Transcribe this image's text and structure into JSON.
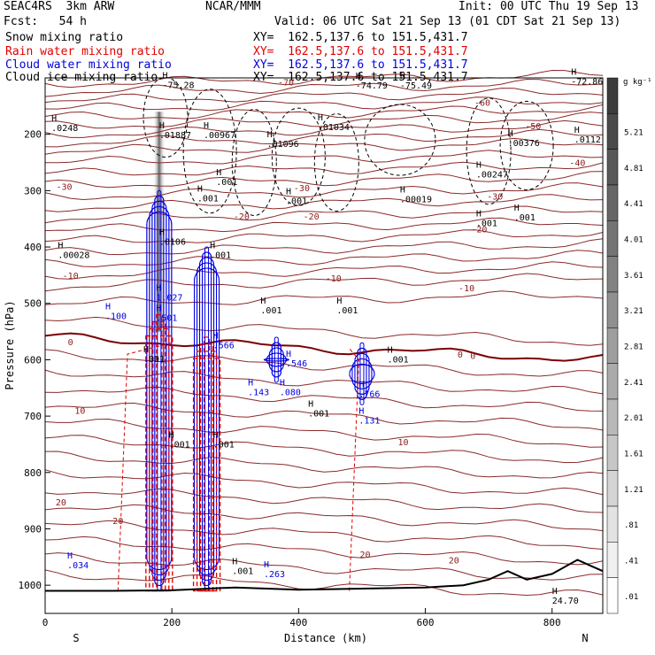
{
  "header": {
    "model": "SEAC4RS  3km ARW",
    "org": "NCAR/MMM",
    "init": "Init: 00 UTC Thu 19 Sep 13",
    "fcst": "Fcst:   54 h",
    "valid": "Valid: 06 UTC Sat 21 Sep 13 (01 CDT Sat 21 Sep 13)"
  },
  "fields": [
    {
      "label": "Snow mixing ratio",
      "xy": "XY=  162.5,137.6 to 151.5,431.7",
      "color": "#000000"
    },
    {
      "label": "Rain water mixing ratio",
      "xy": "XY=  162.5,137.6 to 151.5,431.7",
      "color": "#e00000"
    },
    {
      "label": "Cloud water mixing ratio",
      "xy": "XY=  162.5,137.6 to 151.5,431.7",
      "color": "#0000e0"
    },
    {
      "label": "Cloud ice mixing ratio",
      "xy": "XY=  162.5,137.6 to 151.5,431.7",
      "color": "#000000"
    }
  ],
  "colorbar": {
    "unit": "g kg⁻¹",
    "labels": [
      "5.21",
      "4.81",
      "4.41",
      "4.01",
      "3.61",
      "3.21",
      "2.81",
      "2.41",
      "2.01",
      "1.61",
      "1.21",
      ".81",
      ".41",
      ".01"
    ]
  },
  "chart_data": {
    "type": "cross-section",
    "xlabel": "Distance (km)",
    "ylabel": "Pressure (hPa)",
    "xlim": [
      0,
      880
    ],
    "ylim": [
      1050,
      100
    ],
    "x_ticks": [
      "0",
      "200",
      "400",
      "600",
      "800"
    ],
    "y_ticks": [
      "200",
      "300",
      "400",
      "500",
      "600",
      "700",
      "800",
      "900",
      "1000"
    ],
    "left_endpoint": "S",
    "right_endpoint": "N",
    "temperature_contours": [
      {
        "label": "-70",
        "x": 380,
        "p": 107
      },
      {
        "label": "-60",
        "x": 690,
        "p": 143
      },
      {
        "label": "-50",
        "x": 770,
        "p": 185
      },
      {
        "label": "-40",
        "x": 840,
        "p": 250
      },
      {
        "label": "-30",
        "x": 30,
        "p": 292
      },
      {
        "label": "-30",
        "x": 405,
        "p": 295
      },
      {
        "label": "-30",
        "x": 710,
        "p": 310
      },
      {
        "label": "-20",
        "x": 420,
        "p": 345
      },
      {
        "label": "-20",
        "x": 310,
        "p": 345
      },
      {
        "label": "-20",
        "x": 685,
        "p": 368
      },
      {
        "label": "-10",
        "x": 40,
        "p": 450
      },
      {
        "label": "-10",
        "x": 455,
        "p": 455
      },
      {
        "label": "-10",
        "x": 665,
        "p": 472
      },
      {
        "label": "0",
        "x": 40,
        "p": 568
      },
      {
        "label": "0",
        "x": 655,
        "p": 590
      },
      {
        "label": "0",
        "x": 675,
        "p": 592
      },
      {
        "label": "10",
        "x": 55,
        "p": 690
      },
      {
        "label": "10",
        "x": 565,
        "p": 745
      },
      {
        "label": "20",
        "x": 25,
        "p": 852
      },
      {
        "label": "20",
        "x": 115,
        "p": 885
      },
      {
        "label": "20",
        "x": 505,
        "p": 945
      },
      {
        "label": "20",
        "x": 645,
        "p": 955
      }
    ],
    "highs": [
      {
        "label": "-75.28",
        "x": 185,
        "p": 110
      },
      {
        "label": "-74.79",
        "x": 490,
        "p": 111
      },
      {
        "label": "-75.49",
        "x": 560,
        "p": 111
      },
      {
        "label": "-72.86",
        "x": 830,
        "p": 104
      },
      {
        "label": ".0248",
        "x": 10,
        "p": 186
      },
      {
        "label": ".01887",
        "x": 180,
        "p": 199
      },
      {
        "label": ".00967",
        "x": 250,
        "p": 199
      },
      {
        "label": ".01034",
        "x": 430,
        "p": 185
      },
      {
        "label": ".01096",
        "x": 350,
        "p": 215
      },
      {
        "label": ".00376",
        "x": 730,
        "p": 213
      },
      {
        "label": ".0112",
        "x": 835,
        "p": 207
      },
      {
        "label": ".00247",
        "x": 680,
        "p": 269
      },
      {
        "label": ".00019",
        "x": 560,
        "p": 313
      },
      {
        "label": ".001",
        "x": 240,
        "p": 311
      },
      {
        "label": ".001",
        "x": 270,
        "p": 282
      },
      {
        "label": ".001",
        "x": 380,
        "p": 316
      },
      {
        "label": ".001",
        "x": 740,
        "p": 345
      },
      {
        "label": ".001",
        "x": 680,
        "p": 355
      },
      {
        "label": ".0106",
        "x": 180,
        "p": 388
      },
      {
        "label": ".00028",
        "x": 20,
        "p": 412
      },
      {
        "label": ".001",
        "x": 260,
        "p": 412
      },
      {
        "label": "1.027",
        "x": 175,
        "p": 487
      },
      {
        "label": ".100",
        "x": 95,
        "p": 520
      },
      {
        "label": ".501",
        "x": 175,
        "p": 523
      },
      {
        "label": ".001",
        "x": 340,
        "p": 510
      },
      {
        "label": ".001",
        "x": 460,
        "p": 510
      },
      {
        "label": ".566",
        "x": 265,
        "p": 572
      },
      {
        "label": ".546",
        "x": 380,
        "p": 604
      },
      {
        "label": ".001",
        "x": 155,
        "p": 596
      },
      {
        "label": ".001",
        "x": 540,
        "p": 597
      },
      {
        "label": ".143",
        "x": 320,
        "p": 655
      },
      {
        "label": ".080",
        "x": 370,
        "p": 655
      },
      {
        "label": ".766",
        "x": 495,
        "p": 658
      },
      {
        "label": ".131",
        "x": 495,
        "p": 705
      },
      {
        "label": ".001",
        "x": 415,
        "p": 693
      },
      {
        "label": ".001",
        "x": 195,
        "p": 748
      },
      {
        "label": ".001",
        "x": 265,
        "p": 748
      },
      {
        "label": ".034",
        "x": 35,
        "p": 962
      },
      {
        "label": ".263",
        "x": 345,
        "p": 978
      },
      {
        "label": ".001",
        "x": 295,
        "p": 972
      },
      {
        "label": "24.70",
        "x": 800,
        "p": 1025
      }
    ],
    "cloud_cores": [
      {
        "x": 180,
        "p_top": 300,
        "p_bottom": 1010,
        "kind": "cloud-water"
      },
      {
        "x": 255,
        "p_top": 400,
        "p_bottom": 1010,
        "kind": "cloud-water"
      },
      {
        "x": 180,
        "p_top": 520,
        "p_bottom": 1010,
        "kind": "rain"
      },
      {
        "x": 255,
        "p_top": 560,
        "p_bottom": 1010,
        "kind": "rain"
      },
      {
        "x": 365,
        "p_top": 560,
        "p_bottom": 640,
        "kind": "cloud-water"
      },
      {
        "x": 500,
        "p_top": 570,
        "p_bottom": 680,
        "kind": "cloud-water"
      }
    ],
    "snow_column": {
      "x": 180,
      "p_top": 160,
      "p_bottom": 550,
      "max": 5.21
    },
    "terrain": [
      [
        0,
        1010
      ],
      [
        100,
        1010
      ],
      [
        200,
        1009
      ],
      [
        300,
        1004
      ],
      [
        400,
        1008
      ],
      [
        500,
        1006
      ],
      [
        600,
        1004
      ],
      [
        660,
        1000
      ],
      [
        700,
        990
      ],
      [
        730,
        975
      ],
      [
        760,
        990
      ],
      [
        800,
        980
      ],
      [
        840,
        955
      ],
      [
        860,
        965
      ],
      [
        880,
        975
      ]
    ]
  }
}
